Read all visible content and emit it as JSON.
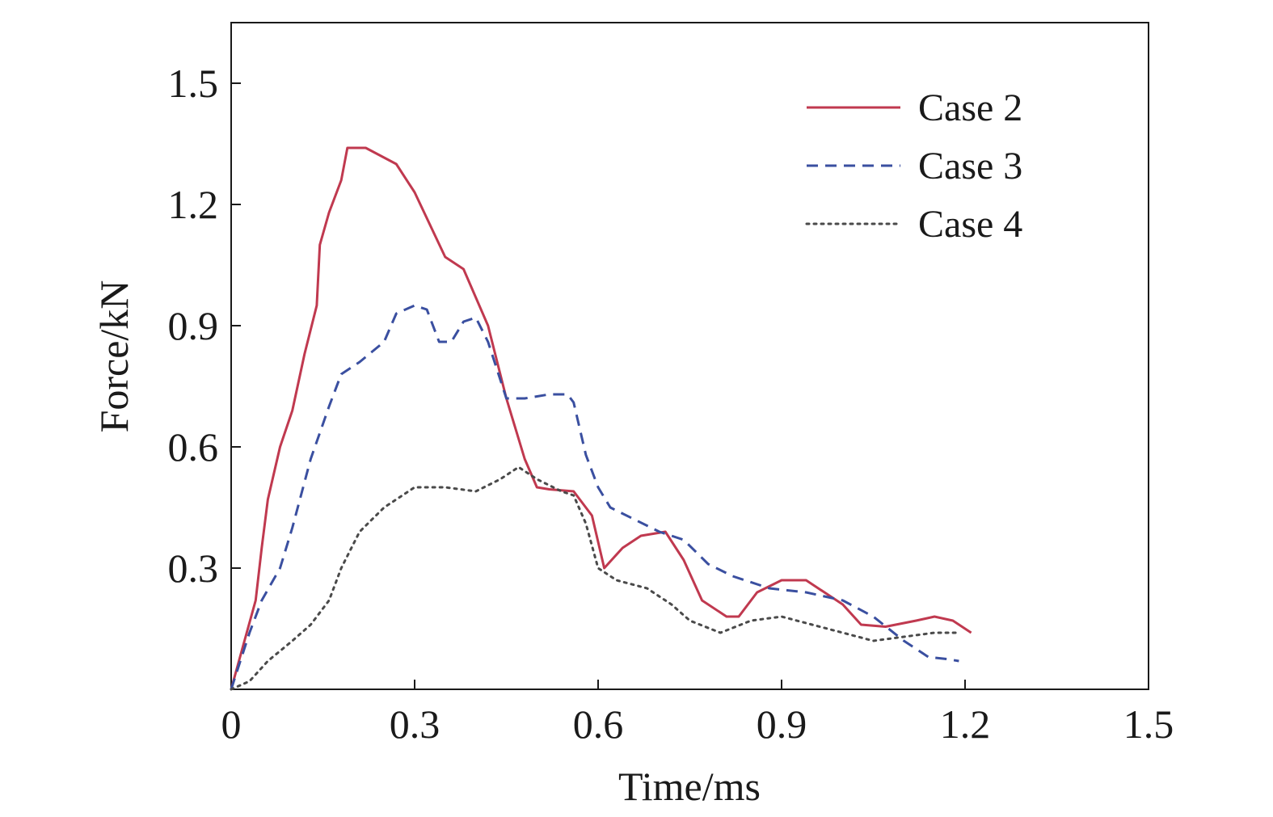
{
  "chart_data": {
    "type": "line",
    "title": "",
    "xlabel": "Time/ms",
    "ylabel": "Force/kN",
    "xlim": [
      0,
      1.5
    ],
    "ylim": [
      0,
      1.65
    ],
    "x_ticks": [
      0,
      0.3,
      0.6,
      0.9,
      1.2,
      1.5
    ],
    "x_tick_labels": [
      "0",
      "0.3",
      "0.6",
      "0.9",
      "1.2",
      "1.5"
    ],
    "y_ticks": [
      0.3,
      0.6,
      0.9,
      1.2,
      1.5
    ],
    "y_tick_labels": [
      "0.3",
      "0.6",
      "0.9",
      "1.2",
      "1.5"
    ],
    "grid": false,
    "legend_position": "top-right",
    "series": [
      {
        "name": "Case 2",
        "color": "#c0394f",
        "style": "solid",
        "points": [
          [
            0.0,
            0.0
          ],
          [
            0.02,
            0.11
          ],
          [
            0.04,
            0.22
          ],
          [
            0.05,
            0.35
          ],
          [
            0.06,
            0.47
          ],
          [
            0.08,
            0.6
          ],
          [
            0.1,
            0.69
          ],
          [
            0.12,
            0.83
          ],
          [
            0.14,
            0.95
          ],
          [
            0.145,
            1.1
          ],
          [
            0.16,
            1.18
          ],
          [
            0.18,
            1.26
          ],
          [
            0.19,
            1.34
          ],
          [
            0.22,
            1.34
          ],
          [
            0.27,
            1.3
          ],
          [
            0.3,
            1.23
          ],
          [
            0.35,
            1.07
          ],
          [
            0.38,
            1.04
          ],
          [
            0.42,
            0.9
          ],
          [
            0.45,
            0.72
          ],
          [
            0.48,
            0.57
          ],
          [
            0.5,
            0.5
          ],
          [
            0.52,
            0.495
          ],
          [
            0.56,
            0.49
          ],
          [
            0.59,
            0.43
          ],
          [
            0.61,
            0.3
          ],
          [
            0.64,
            0.35
          ],
          [
            0.67,
            0.38
          ],
          [
            0.71,
            0.39
          ],
          [
            0.74,
            0.32
          ],
          [
            0.77,
            0.22
          ],
          [
            0.81,
            0.18
          ],
          [
            0.83,
            0.18
          ],
          [
            0.86,
            0.24
          ],
          [
            0.9,
            0.27
          ],
          [
            0.94,
            0.27
          ],
          [
            1.0,
            0.21
          ],
          [
            1.03,
            0.16
          ],
          [
            1.07,
            0.155
          ],
          [
            1.12,
            0.17
          ],
          [
            1.15,
            0.18
          ],
          [
            1.18,
            0.17
          ],
          [
            1.21,
            0.14
          ]
        ]
      },
      {
        "name": "Case 3",
        "color": "#3a4fa0",
        "style": "dashed",
        "points": [
          [
            0.0,
            0.0
          ],
          [
            0.03,
            0.14
          ],
          [
            0.05,
            0.22
          ],
          [
            0.08,
            0.3
          ],
          [
            0.1,
            0.4
          ],
          [
            0.13,
            0.57
          ],
          [
            0.16,
            0.7
          ],
          [
            0.18,
            0.78
          ],
          [
            0.21,
            0.81
          ],
          [
            0.25,
            0.86
          ],
          [
            0.27,
            0.93
          ],
          [
            0.3,
            0.95
          ],
          [
            0.32,
            0.94
          ],
          [
            0.34,
            0.86
          ],
          [
            0.36,
            0.86
          ],
          [
            0.38,
            0.91
          ],
          [
            0.4,
            0.92
          ],
          [
            0.42,
            0.86
          ],
          [
            0.45,
            0.72
          ],
          [
            0.48,
            0.72
          ],
          [
            0.52,
            0.73
          ],
          [
            0.55,
            0.73
          ],
          [
            0.56,
            0.71
          ],
          [
            0.58,
            0.58
          ],
          [
            0.6,
            0.5
          ],
          [
            0.62,
            0.45
          ],
          [
            0.66,
            0.42
          ],
          [
            0.7,
            0.39
          ],
          [
            0.74,
            0.37
          ],
          [
            0.78,
            0.31
          ],
          [
            0.82,
            0.28
          ],
          [
            0.88,
            0.25
          ],
          [
            0.94,
            0.24
          ],
          [
            1.0,
            0.22
          ],
          [
            1.05,
            0.18
          ],
          [
            1.1,
            0.12
          ],
          [
            1.14,
            0.08
          ],
          [
            1.17,
            0.075
          ],
          [
            1.19,
            0.07
          ]
        ]
      },
      {
        "name": "Case 4",
        "color": "#4a4a4a",
        "style": "dotted",
        "points": [
          [
            0.0,
            0.0
          ],
          [
            0.03,
            0.02
          ],
          [
            0.06,
            0.07
          ],
          [
            0.1,
            0.12
          ],
          [
            0.13,
            0.16
          ],
          [
            0.16,
            0.22
          ],
          [
            0.18,
            0.3
          ],
          [
            0.21,
            0.39
          ],
          [
            0.25,
            0.45
          ],
          [
            0.3,
            0.5
          ],
          [
            0.35,
            0.5
          ],
          [
            0.4,
            0.49
          ],
          [
            0.44,
            0.52
          ],
          [
            0.47,
            0.55
          ],
          [
            0.5,
            0.52
          ],
          [
            0.54,
            0.49
          ],
          [
            0.56,
            0.48
          ],
          [
            0.58,
            0.41
          ],
          [
            0.6,
            0.3
          ],
          [
            0.63,
            0.27
          ],
          [
            0.68,
            0.25
          ],
          [
            0.72,
            0.21
          ],
          [
            0.75,
            0.17
          ],
          [
            0.8,
            0.14
          ],
          [
            0.85,
            0.17
          ],
          [
            0.9,
            0.18
          ],
          [
            0.95,
            0.16
          ],
          [
            1.0,
            0.14
          ],
          [
            1.05,
            0.12
          ],
          [
            1.1,
            0.13
          ],
          [
            1.15,
            0.14
          ],
          [
            1.19,
            0.14
          ]
        ]
      }
    ]
  }
}
